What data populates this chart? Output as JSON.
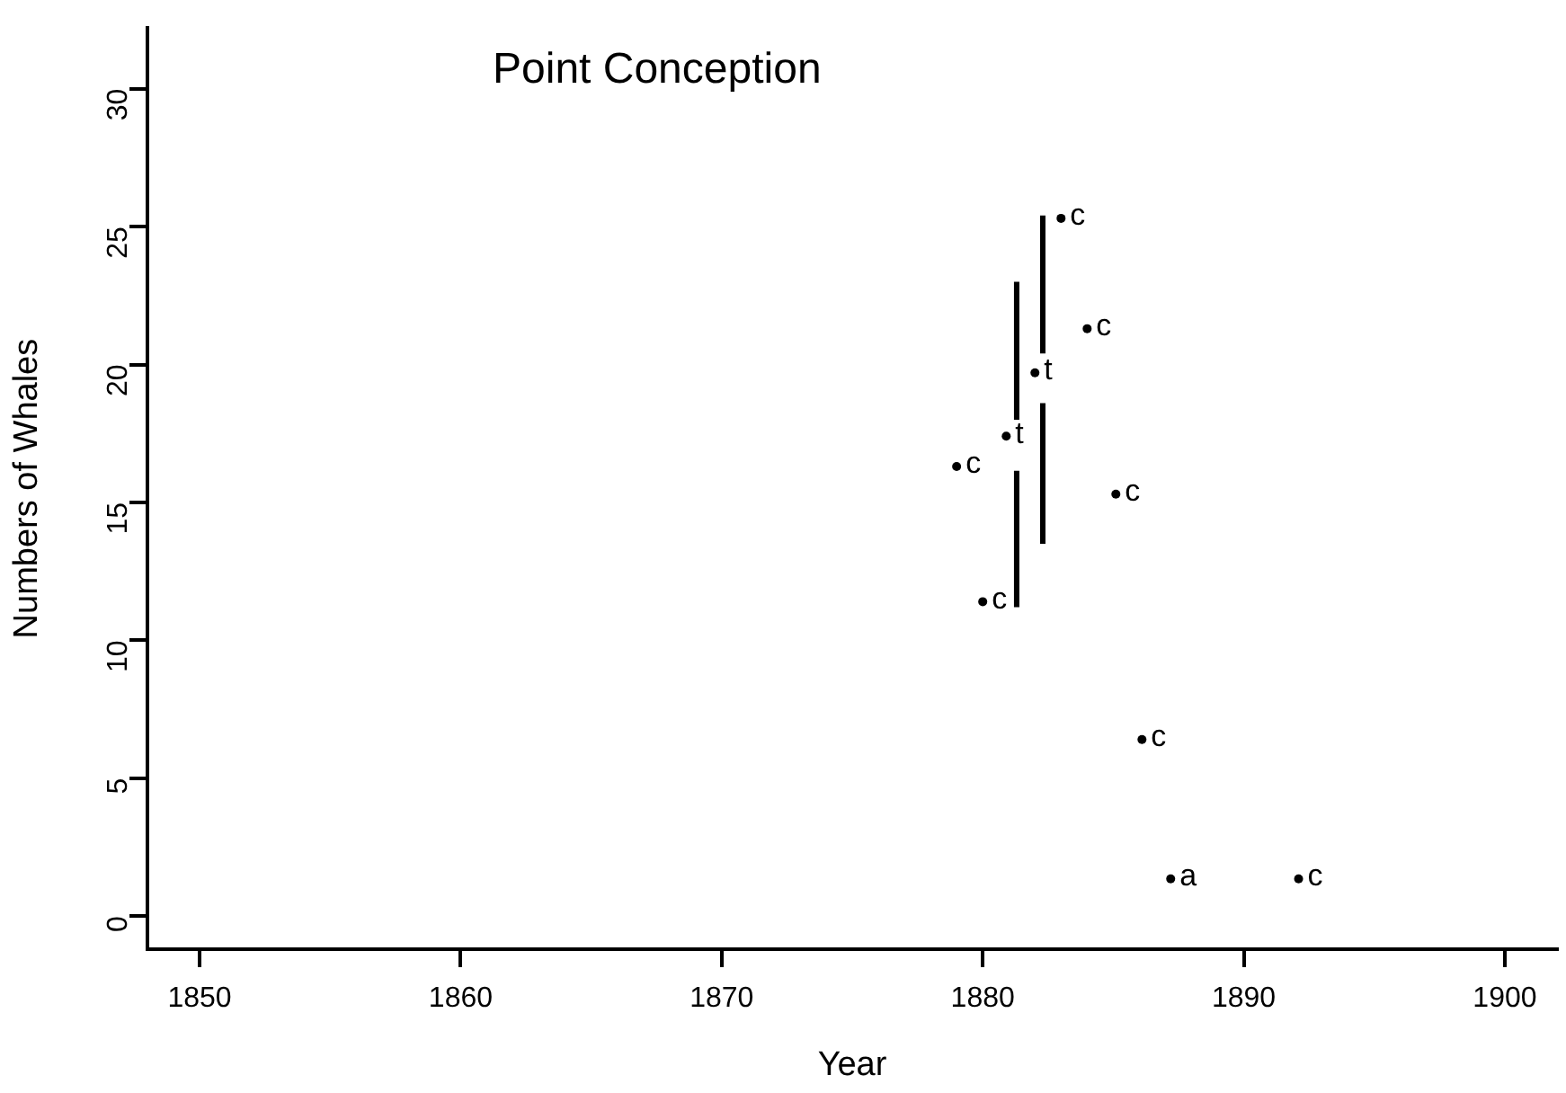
{
  "chart_data": {
    "type": "scatter",
    "title": "Point Conception",
    "xlabel": "Year",
    "ylabel": "Numbers of Whales",
    "xlim": [
      1848,
      1902
    ],
    "xticks": [
      1850,
      1860,
      1870,
      1880,
      1890,
      1900
    ],
    "ylim": [
      -1.2,
      32.2
    ],
    "yticks": [
      0,
      5,
      10,
      15,
      20,
      25,
      30
    ],
    "grid": false,
    "legend": false,
    "series": [
      {
        "name": "c",
        "color": "#000000",
        "marker": "circle",
        "x": [
          1883.0,
          1884.0,
          1879.0,
          1885.1,
          1880.0,
          1886.1,
          1892.1
        ],
        "values": [
          25.3,
          21.3,
          16.3,
          15.3,
          11.4,
          6.4,
          1.35
        ]
      },
      {
        "name": "t",
        "color": "#000000",
        "marker": "circle",
        "x": [
          1882.0,
          1880.9
        ],
        "values": [
          19.7,
          17.4
        ]
      },
      {
        "name": "a",
        "color": "#000000",
        "marker": "circle",
        "x": [
          1887.2
        ],
        "values": [
          1.35
        ]
      },
      {
        "type": "line",
        "color": "#000000",
        "x": [
          1881.3,
          1881.3
        ],
        "values": [
          18.0,
          23.0
        ]
      },
      {
        "type": "line",
        "color": "#000000",
        "x": [
          1881.3,
          1881.3
        ],
        "values": [
          11.2,
          16.15
        ]
      },
      {
        "type": "line",
        "color": "#000000",
        "x": [
          1882.3,
          1882.3
        ],
        "values": [
          20.4,
          25.4
        ]
      },
      {
        "type": "line",
        "color": "#000000",
        "x": [
          1882.3,
          1882.3
        ],
        "values": [
          13.5,
          18.6
        ]
      }
    ]
  }
}
